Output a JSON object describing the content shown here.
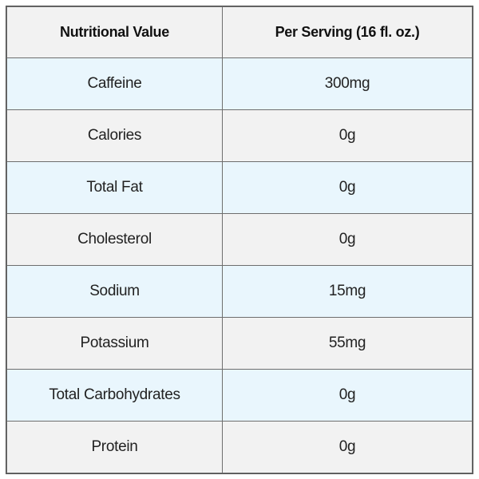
{
  "table": {
    "headers": [
      "Nutritional Value",
      "Per Serving (16 fl. oz.)"
    ],
    "rows": [
      {
        "nutrient": "Caffeine",
        "value": "300mg"
      },
      {
        "nutrient": "Calories",
        "value": "0g"
      },
      {
        "nutrient": "Total Fat",
        "value": "0g"
      },
      {
        "nutrient": "Cholesterol",
        "value": "0g"
      },
      {
        "nutrient": "Sodium",
        "value": "15mg"
      },
      {
        "nutrient": "Potassium",
        "value": "55mg"
      },
      {
        "nutrient": "Total Carbohydrates",
        "value": "0g"
      },
      {
        "nutrient": "Protein",
        "value": "0g"
      }
    ]
  },
  "colors": {
    "header_bg": "#f2f2f2",
    "row_alt_bg": "#e9f6fd",
    "row_bg": "#f2f2f2",
    "border": "#6e6e6e"
  }
}
